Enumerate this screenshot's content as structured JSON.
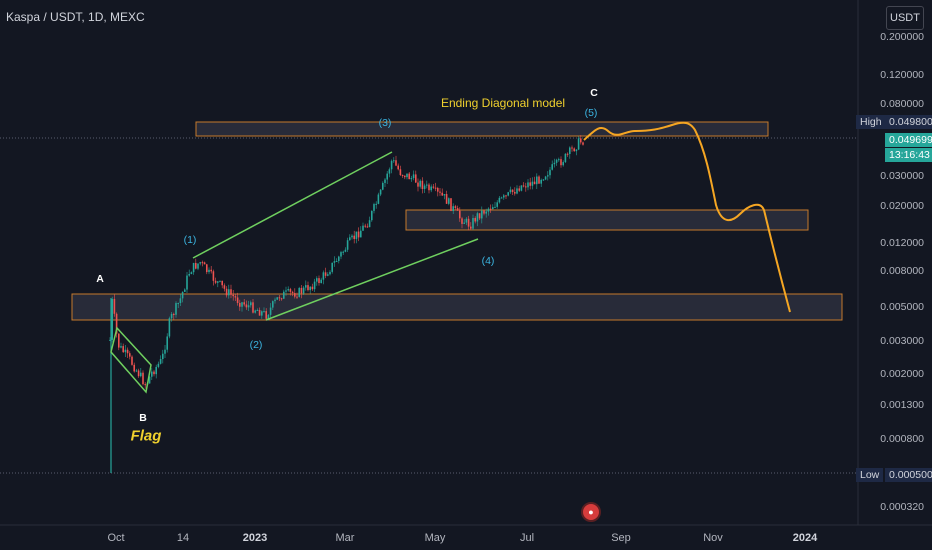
{
  "header": {
    "symbol": "Kaspa / USDT, 1D, MEXC"
  },
  "currency_button": "USDT",
  "y_axis": {
    "labels": [
      "0.200000",
      "0.120000",
      "0.080000",
      "0.030000",
      "0.020000",
      "0.012000",
      "0.008000",
      "0.005000",
      "0.003000",
      "0.002000",
      "0.001300",
      "0.000800",
      "0.000320"
    ],
    "high_tag_label": "High",
    "high_value": "0.049800",
    "price_value": "0.049699",
    "countdown": "13:16:43",
    "low_tag_label": "Low",
    "low_value": "0.000500"
  },
  "x_axis": {
    "labels": [
      "Oct",
      "14",
      "2023",
      "Mar",
      "May",
      "Jul",
      "Sep",
      "Nov",
      "2024"
    ]
  },
  "annotations": {
    "A": "A",
    "B": "B",
    "C": "C",
    "flag": "Flag",
    "model": "Ending Diagonal model",
    "wave1": "(1)",
    "wave2": "(2)",
    "wave3": "(3)",
    "wave4": "(4)",
    "wave5": "(5)"
  },
  "colors": {
    "background": "#131722",
    "up": "#26a69a",
    "down": "#ef5350",
    "trendline": "#6fcf5f",
    "projection": "#f5a623",
    "zone_border": "#c47a2c",
    "zone_fill": "#3a3d4d",
    "label_yellow": "#f0d12e",
    "wave_label": "#3bb4e0",
    "price_tag": "#26a69a",
    "high_low_tag": "#1e2945"
  },
  "icons": {
    "event": "us-flag-event-icon"
  }
}
